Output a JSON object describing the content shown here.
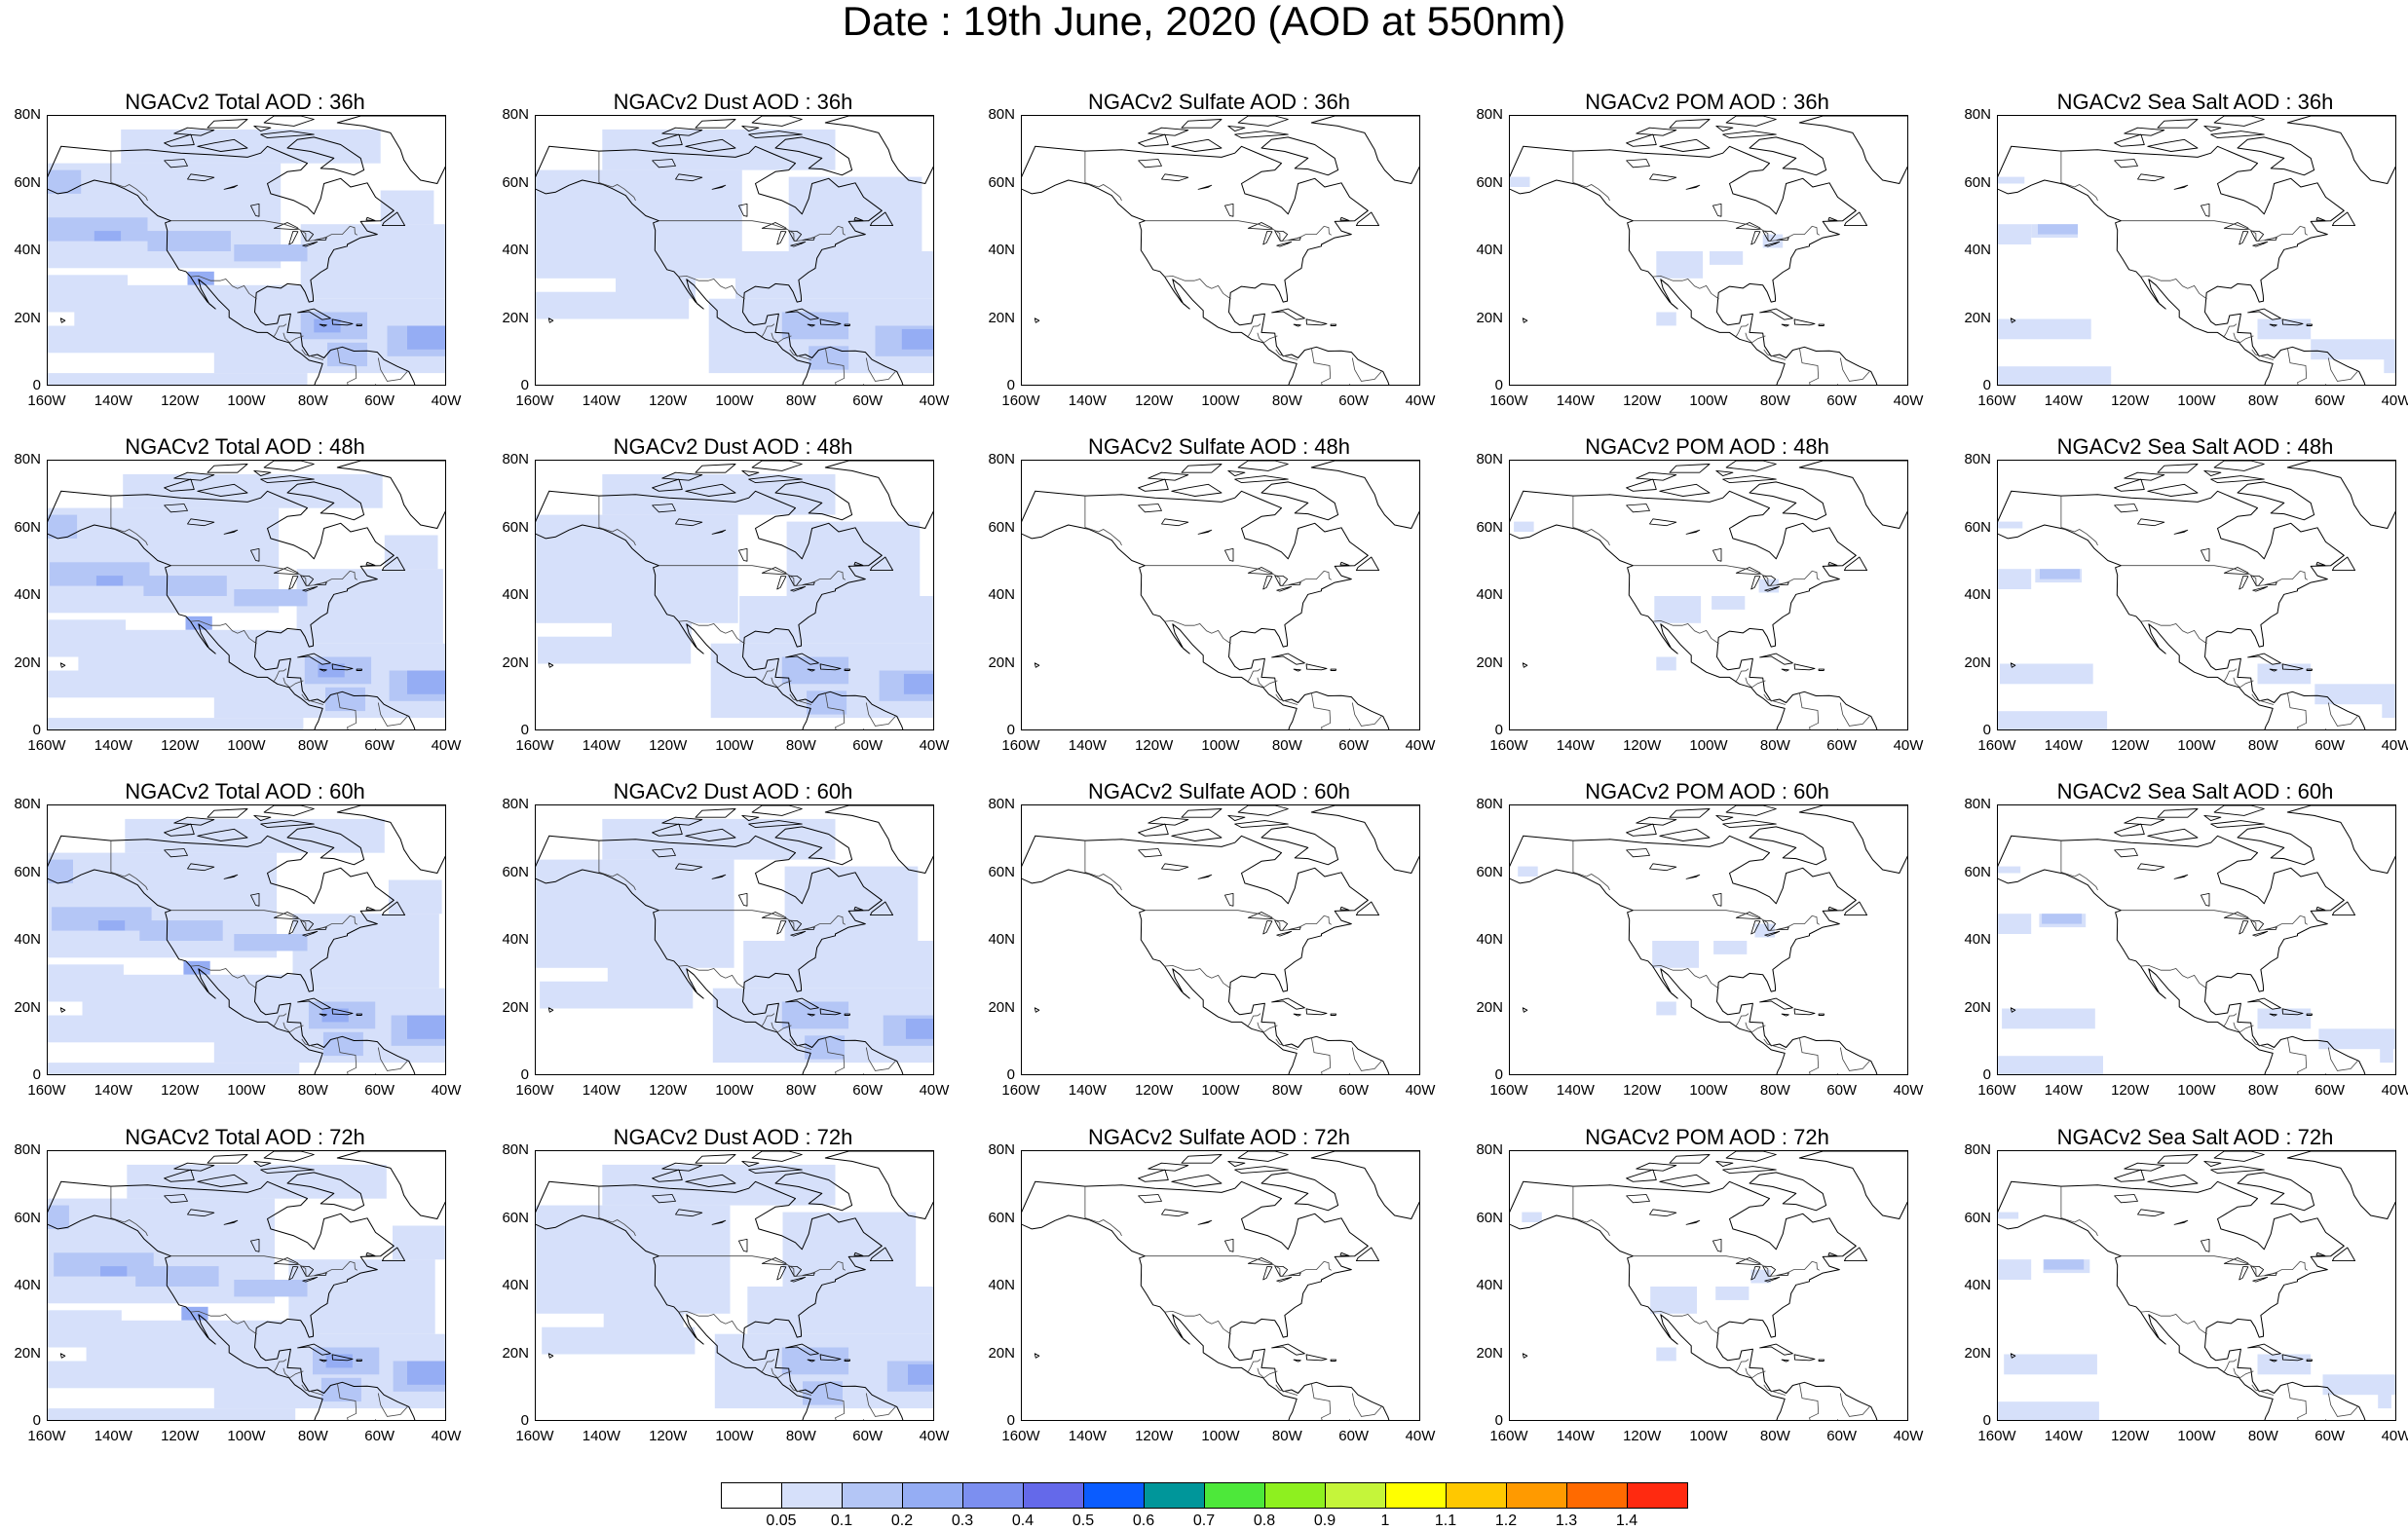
{
  "title": "Date : 19th June, 2020 (AOD at 550nm)",
  "axes": {
    "x_tick_labels": [
      "160W",
      "140W",
      "120W",
      "100W",
      "80W",
      "60W",
      "40W"
    ],
    "y_tick_labels": [
      "0",
      "20N",
      "40N",
      "60N",
      "80N"
    ],
    "lon_range": [
      -160,
      -40
    ],
    "lat_range": [
      0,
      80
    ]
  },
  "panels": [
    {
      "title": "NGACv2 Total AOD : 36h",
      "field": "total",
      "forecast_hour": 36
    },
    {
      "title": "NGACv2 Dust AOD : 36h",
      "field": "dust",
      "forecast_hour": 36
    },
    {
      "title": "NGACv2 Sulfate AOD : 36h",
      "field": "sulfate",
      "forecast_hour": 36
    },
    {
      "title": "NGACv2 POM AOD : 36h",
      "field": "pom",
      "forecast_hour": 36
    },
    {
      "title": "NGACv2 Sea Salt AOD : 36h",
      "field": "seasalt",
      "forecast_hour": 36
    },
    {
      "title": "NGACv2 Total AOD : 48h",
      "field": "total",
      "forecast_hour": 48
    },
    {
      "title": "NGACv2 Dust AOD : 48h",
      "field": "dust",
      "forecast_hour": 48
    },
    {
      "title": "NGACv2 Sulfate AOD : 48h",
      "field": "sulfate",
      "forecast_hour": 48
    },
    {
      "title": "NGACv2 POM AOD : 48h",
      "field": "pom",
      "forecast_hour": 48
    },
    {
      "title": "NGACv2 Sea Salt AOD : 48h",
      "field": "seasalt",
      "forecast_hour": 48
    },
    {
      "title": "NGACv2 Total AOD : 60h",
      "field": "total",
      "forecast_hour": 60
    },
    {
      "title": "NGACv2 Dust AOD : 60h",
      "field": "dust",
      "forecast_hour": 60
    },
    {
      "title": "NGACv2 Sulfate AOD : 60h",
      "field": "sulfate",
      "forecast_hour": 60
    },
    {
      "title": "NGACv2 POM AOD : 60h",
      "field": "pom",
      "forecast_hour": 60
    },
    {
      "title": "NGACv2 Sea Salt AOD : 60h",
      "field": "seasalt",
      "forecast_hour": 60
    },
    {
      "title": "NGACv2 Total AOD : 72h",
      "field": "total",
      "forecast_hour": 72
    },
    {
      "title": "NGACv2 Dust AOD : 72h",
      "field": "dust",
      "forecast_hour": 72
    },
    {
      "title": "NGACv2 Sulfate AOD : 72h",
      "field": "sulfate",
      "forecast_hour": 72
    },
    {
      "title": "NGACv2 POM AOD : 72h",
      "field": "pom",
      "forecast_hour": 72
    },
    {
      "title": "NGACv2 Sea Salt  AOD : 72h",
      "field": "seasalt",
      "forecast_hour": 72
    }
  ],
  "colorbar": {
    "labels": [
      "0.05",
      "0.1",
      "0.2",
      "0.3",
      "0.4",
      "0.5",
      "0.6",
      "0.7",
      "0.8",
      "0.9",
      "1",
      "1.1",
      "1.2",
      "1.3",
      "1.4"
    ],
    "colors": [
      "#ffffff",
      "#d6e0fa",
      "#b4c6f6",
      "#95adf4",
      "#7c8ff0",
      "#6469ea",
      "#0a5cff",
      "#00969a",
      "#4de83a",
      "#8ef01f",
      "#c5f53a",
      "#ffff00",
      "#ffc800",
      "#ff9a00",
      "#ff6a00",
      "#ff2a10"
    ]
  },
  "palette": {
    "level_1": "#d6e0fa",
    "level_2": "#b4c6f6",
    "level_3": "#95adf4",
    "level_4": "#7c8ff0",
    "coast": "#000000",
    "border": "#444444"
  }
}
